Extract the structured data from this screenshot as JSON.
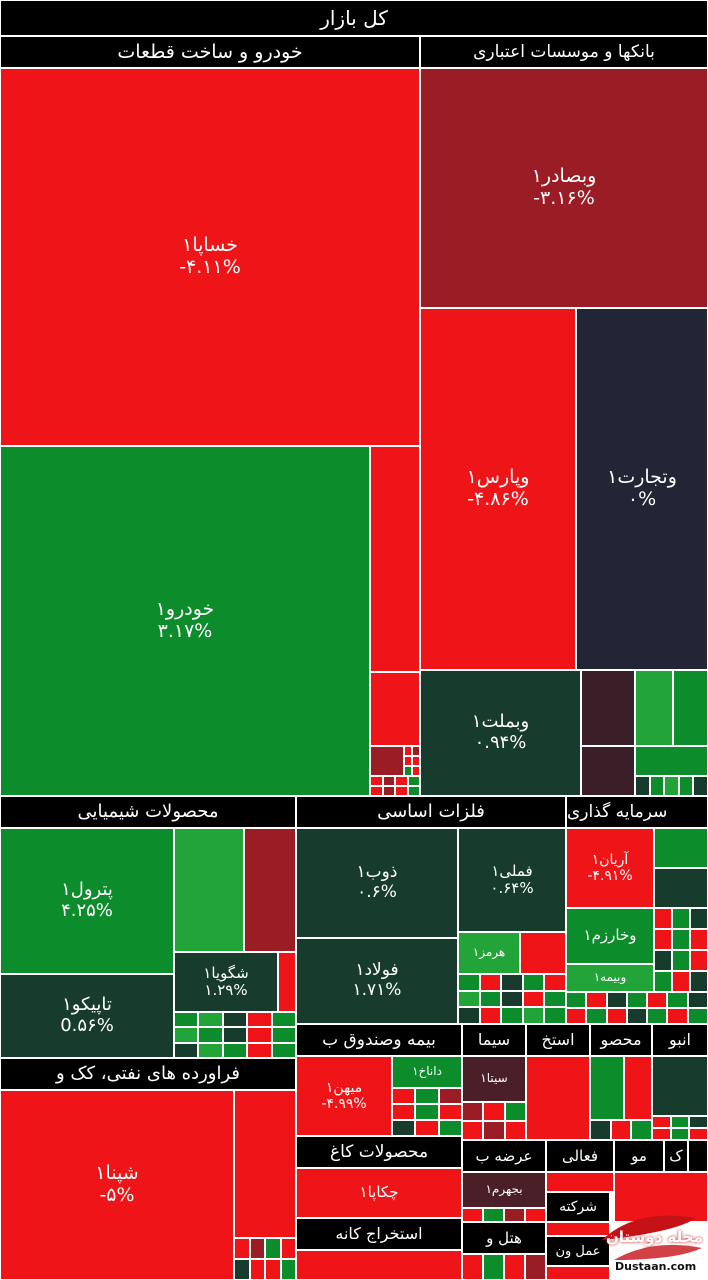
{
  "chart_data": {
    "type": "treemap",
    "title": "کل بازار",
    "colors": {
      "red": "#ee1418",
      "dark_red": "#9a1d25",
      "green": "#0d8c2c",
      "dark_green": "#173c2e",
      "navy": "#222535",
      "light_green": "#23a438"
    },
    "sectors": [
      {
        "name": "خودرو و ساخت قطعات",
        "tiles": [
          {
            "symbol": "خساپا۱",
            "change": "-۴.۱۱%"
          },
          {
            "symbol": "خودرو۱",
            "change": "۳.۱۷%"
          }
        ]
      },
      {
        "name": "بانکها و موسسات اعتباری",
        "tiles": [
          {
            "symbol": "وبصادر۱",
            "change": "-۳.۱۶%"
          },
          {
            "symbol": "وپارس۱",
            "change": "-۴.۸۶%"
          },
          {
            "symbol": "وتجارت۱",
            "change": "۰%"
          },
          {
            "symbol": "وبملت۱",
            "change": "۰.۹۴%"
          }
        ]
      },
      {
        "name": "محصولات شیمیایی",
        "tiles": [
          {
            "symbol": "پترول۱",
            "change": "۴.۲۵%"
          },
          {
            "symbol": "تاپیکو۱",
            "change": "0.۵۶%"
          },
          {
            "symbol": "شگویا۱",
            "change": "۱.۲۹%"
          }
        ]
      },
      {
        "name": "فلزات اساسی",
        "tiles": [
          {
            "symbol": "ذوب۱",
            "change": "۰.۶%"
          },
          {
            "symbol": "فملی۱",
            "change": "۰.۶۴%"
          },
          {
            "symbol": "فولاد۱",
            "change": "۱.۷۱%"
          },
          {
            "symbol": "هرمز۱",
            "change": ""
          }
        ]
      },
      {
        "name": "سرمایه گذاری",
        "tiles": [
          {
            "symbol": "آریان۱",
            "change": "-۴.۹۱%"
          },
          {
            "symbol": "وخارزم۱",
            "change": ""
          },
          {
            "symbol": "وبیمه۱",
            "change": ""
          }
        ]
      },
      {
        "name": "فراورده های نفتی، کک و",
        "tiles": [
          {
            "symbol": "شپنا۱",
            "change": "-۵%"
          }
        ]
      },
      {
        "name": "بیمه وصندوق ب",
        "tiles": [
          {
            "symbol": "میهن۱",
            "change": "-۴.۹۹%"
          },
          {
            "symbol": "داناخ۱",
            "change": ""
          }
        ]
      },
      {
        "name": "سیما",
        "tiles": [
          {
            "symbol": "سیتا۱",
            "change": ""
          }
        ]
      },
      {
        "name": "استخ",
        "tiles": []
      },
      {
        "name": "محصو",
        "tiles": []
      },
      {
        "name": "انبو",
        "tiles": []
      },
      {
        "name": "محصولات کاغ",
        "tiles": [
          {
            "symbol": "چکاپا۱",
            "change": ""
          }
        ]
      },
      {
        "name": "عرضه ب",
        "tiles": [
          {
            "symbol": "بجهرم۱",
            "change": ""
          }
        ]
      },
      {
        "name": "فعالی",
        "tiles": []
      },
      {
        "name": "مو",
        "tiles": []
      },
      {
        "name": "ک",
        "tiles": []
      },
      {
        "name": "شرکته",
        "tiles": []
      },
      {
        "name": "استخراج کانه",
        "tiles": []
      },
      {
        "name": "هتل و",
        "tiles": []
      },
      {
        "name": "عمل ون",
        "tiles": []
      }
    ]
  },
  "watermark": {
    "text": "مجله دوستان",
    "url": "Dustaan.com"
  }
}
